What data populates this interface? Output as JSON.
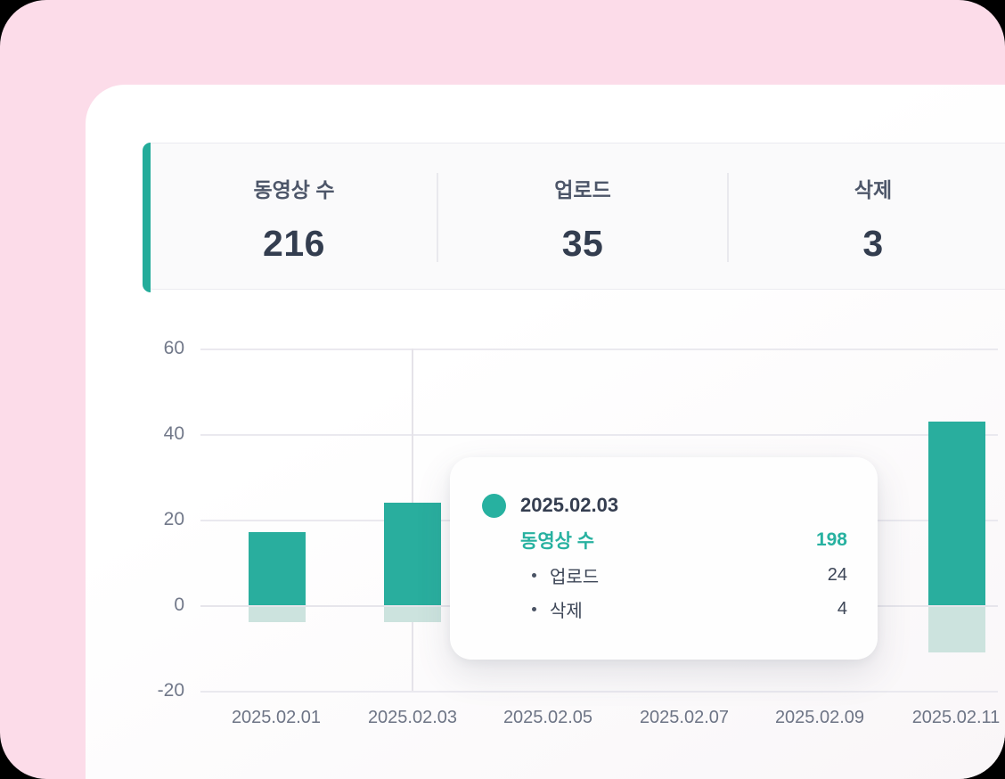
{
  "colors": {
    "page_pink": "#fcdce9",
    "accent_teal": "#23ac9a",
    "bar_upload_teal": "#29ae9e",
    "bar_delete_light_teal": "#cce3de"
  },
  "stats": {
    "items": [
      {
        "label": "동영상 수",
        "value": "216"
      },
      {
        "label": "업로드",
        "value": "35"
      },
      {
        "label": "삭제",
        "value": "3"
      }
    ]
  },
  "chart_data": {
    "type": "bar",
    "title": "",
    "xlabel": "",
    "ylabel": "",
    "x_tick_labels": [
      "2025.02.01",
      "2025.02.03",
      "2025.02.05",
      "2025.02.07",
      "2025.02.09",
      "2025.02.11"
    ],
    "y_ticks": [
      60,
      40,
      20,
      0,
      -20
    ],
    "ylim": [
      -20,
      60
    ],
    "grid": "horizontal",
    "legend": "none",
    "hover_index": 1,
    "series": [
      {
        "key": "upload",
        "name": "업로드",
        "color": "#29ae9e",
        "values": [
          17,
          24,
          null,
          null,
          null,
          43
        ]
      },
      {
        "key": "delete",
        "name": "삭제",
        "color": "#cce3de",
        "values": [
          -4,
          -4,
          null,
          null,
          null,
          -11
        ]
      }
    ]
  },
  "tooltip": {
    "date": "2025.02.03",
    "primary": {
      "label": "동영상 수",
      "value": "198"
    },
    "rows": [
      {
        "label": "업로드",
        "value": "24"
      },
      {
        "label": "삭제",
        "value": "4"
      }
    ]
  }
}
